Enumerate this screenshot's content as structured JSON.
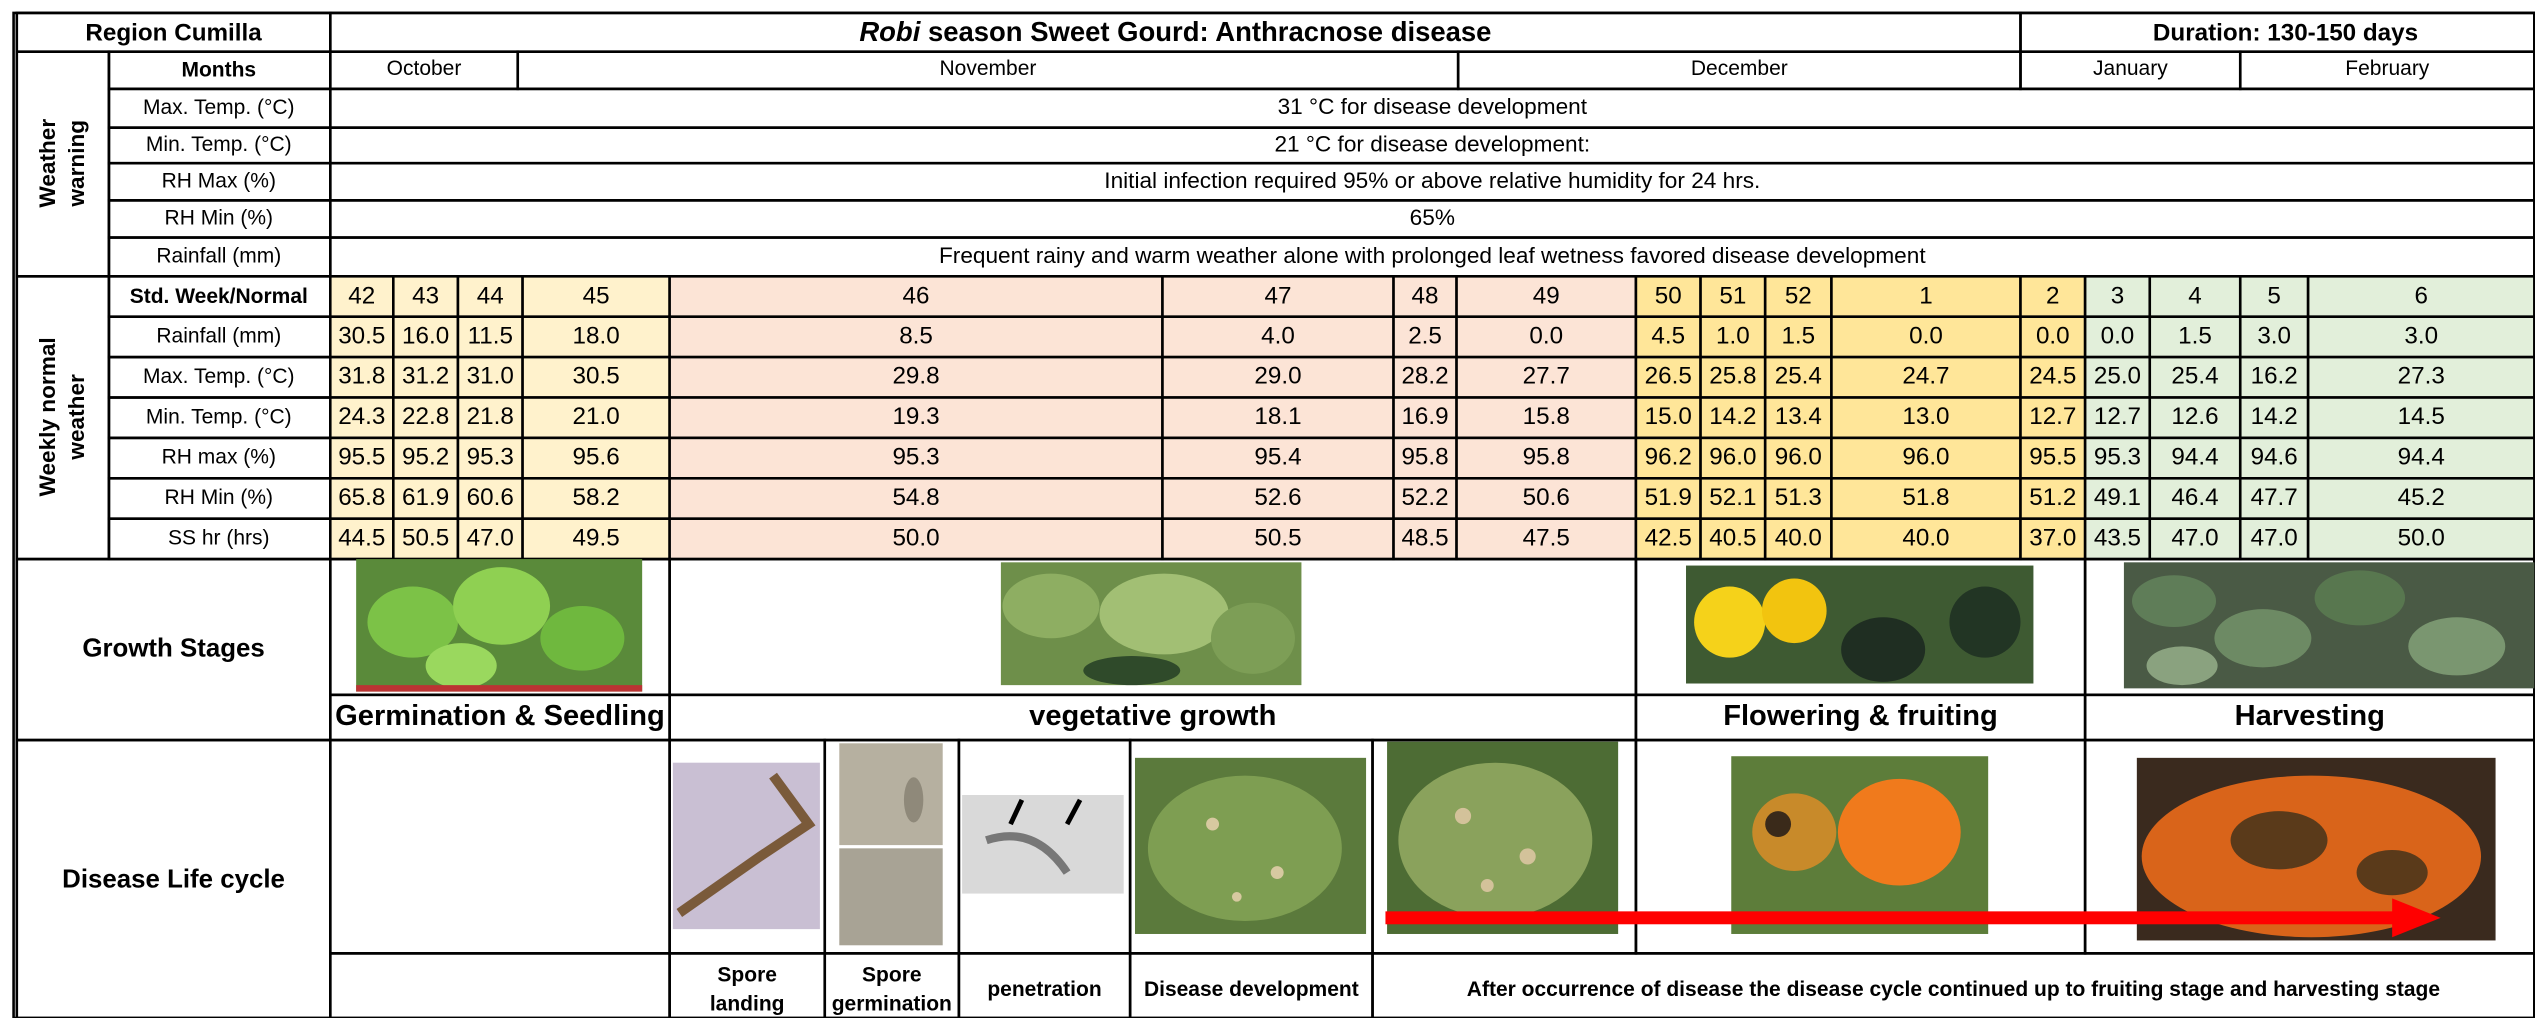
{
  "header": {
    "region": "Region Cumilla",
    "title_italic": "Robi",
    "title_rest": " season Sweet Gourd: Anthracnose disease",
    "duration": "Duration: 130-150 days"
  },
  "months": {
    "label": "Months",
    "names": [
      "October",
      "November",
      "December",
      "January",
      "February"
    ]
  },
  "weather_warning": {
    "label": [
      "Weather",
      "warning"
    ],
    "rows": [
      {
        "label": "Max. Temp. (°C)",
        "text": "31 °C for disease development"
      },
      {
        "label": "Min. Temp. (°C)",
        "text": "21 °C for disease development:"
      },
      {
        "label": "RH Max (%)",
        "text": "Initial infection required 95% or above relative humidity for 24 hrs."
      },
      {
        "label": "RH Min (%)",
        "text": "65%"
      },
      {
        "label": "Rainfall (mm)",
        "text": "Frequent rainy and warm weather alone with prolonged leaf wetness favored disease development"
      }
    ]
  },
  "weekly_normal": {
    "label": [
      "Weekly normal",
      "weather"
    ],
    "week_label": "Std. Week/Normal",
    "weeks": [
      42,
      43,
      44,
      45,
      46,
      47,
      48,
      49,
      50,
      51,
      52,
      1,
      2,
      3,
      4,
      5,
      6
    ],
    "rows": [
      {
        "label": "Rainfall (mm)",
        "values": [
          "30.5",
          "16.0",
          "11.5",
          "18.0",
          "8.5",
          "4.0",
          "2.5",
          "0.0",
          "4.5",
          "1.0",
          "1.5",
          "0.0",
          "0.0",
          "0.0",
          "1.5",
          "3.0",
          "3.0"
        ]
      },
      {
        "label": "Max. Temp. (°C)",
        "values": [
          "31.8",
          "31.2",
          "31.0",
          "30.5",
          "29.8",
          "29.0",
          "28.2",
          "27.7",
          "26.5",
          "25.8",
          "25.4",
          "24.7",
          "24.5",
          "25.0",
          "25.4",
          "16.2",
          "27.3"
        ]
      },
      {
        "label": "Min. Temp. (°C)",
        "values": [
          "24.3",
          "22.8",
          "21.8",
          "21.0",
          "19.3",
          "18.1",
          "16.9",
          "15.8",
          "15.0",
          "14.2",
          "13.4",
          "13.0",
          "12.7",
          "12.7",
          "12.6",
          "14.2",
          "14.5"
        ]
      },
      {
        "label": "RH max (%)",
        "values": [
          "95.5",
          "95.2",
          "95.3",
          "95.6",
          "95.3",
          "95.4",
          "95.8",
          "95.8",
          "96.2",
          "96.0",
          "96.0",
          "96.0",
          "95.5",
          "95.3",
          "94.4",
          "94.6",
          "94.4"
        ]
      },
      {
        "label": "RH Min (%)",
        "values": [
          "65.8",
          "61.9",
          "60.6",
          "58.2",
          "54.8",
          "52.6",
          "52.2",
          "50.6",
          "51.9",
          "52.1",
          "51.3",
          "51.8",
          "51.2",
          "49.1",
          "46.4",
          "47.7",
          "45.2"
        ]
      },
      {
        "label": "SS hr (hrs)",
        "values": [
          "44.5",
          "50.5",
          "47.0",
          "49.5",
          "50.0",
          "50.5",
          "48.5",
          "47.5",
          "42.5",
          "40.5",
          "40.0",
          "40.0",
          "37.0",
          "43.5",
          "47.0",
          "47.0",
          "50.0"
        ]
      }
    ]
  },
  "growth_stages": {
    "label": "Growth Stages",
    "stages": [
      "Germination & Seedling",
      "vegetative growth",
      "Flowering & fruiting",
      "Harvesting"
    ]
  },
  "disease_life_cycle": {
    "label": "Disease Life cycle",
    "steps": [
      [
        "Spore",
        "landing"
      ],
      [
        "Spore",
        "germination"
      ],
      [
        "penetration"
      ],
      [
        "Disease development"
      ],
      [
        "After occurrence  of disease the disease cycle continued up to fruiting stage and harvesting stage"
      ]
    ]
  }
}
